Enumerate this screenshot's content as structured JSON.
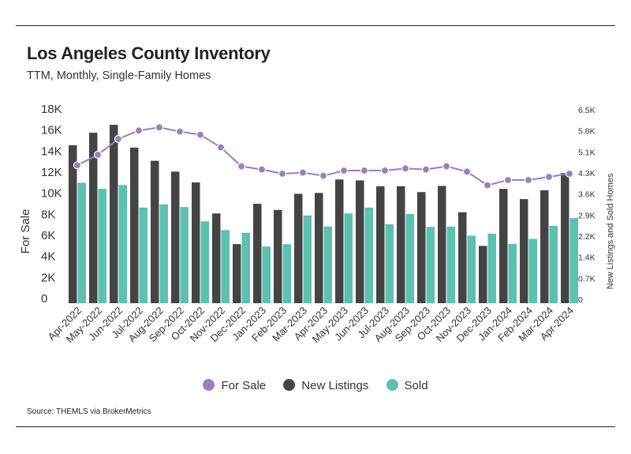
{
  "header": {
    "title": "Los Angeles County Inventory",
    "subtitle": "TTM, Monthly, Single-Family Homes"
  },
  "footer": {
    "source": "Source:  THEMLS via BrokerMetrics"
  },
  "colors": {
    "for_sale": "#9b7dc2",
    "new_listings": "#444444",
    "sold": "#5bc2ae",
    "text": "#333333",
    "rule": "#222222"
  },
  "chart_data": {
    "type": "bar",
    "categories": [
      "Apr-2022",
      "May-2022",
      "Jun-2022",
      "Jul-2022",
      "Aug-2022",
      "Sep-2022",
      "Oct-2022",
      "Nov-2022",
      "Dec-2022",
      "Jan-2023",
      "Feb-2023",
      "Mar-2023",
      "Apr-2023",
      "May-2023",
      "Jun-2023",
      "Jul-2023",
      "Aug-2023",
      "Sep-2023",
      "Oct-2023",
      "Nov-2023",
      "Dec-2023",
      "Jan-2024",
      "Feb-2024",
      "Mar-2024",
      "Apr-2024"
    ],
    "series": [
      {
        "name": "For Sale",
        "type": "line",
        "axis": "left",
        "values": [
          13100,
          14100,
          15600,
          16400,
          16700,
          16300,
          16000,
          14800,
          13000,
          12700,
          12300,
          12400,
          12100,
          12600,
          12600,
          12600,
          12800,
          12700,
          13000,
          12500,
          11200,
          11700,
          11700,
          12000,
          12300
        ]
      },
      {
        "name": "New Listings",
        "type": "bar",
        "axis": "right",
        "values": [
          5400,
          5830,
          6100,
          5320,
          4870,
          4500,
          4130,
          3070,
          2020,
          3400,
          3190,
          3740,
          3770,
          4230,
          4200,
          4000,
          4000,
          3800,
          4010,
          3110,
          1960,
          3910,
          3560,
          3860,
          4450
        ]
      },
      {
        "name": "Sold",
        "type": "bar",
        "axis": "right",
        "values": [
          4120,
          3910,
          4040,
          3270,
          3380,
          3290,
          2800,
          2500,
          2410,
          1940,
          2020,
          3000,
          2620,
          3070,
          3270,
          2700,
          3050,
          2610,
          2620,
          2310,
          2380,
          2030,
          2200,
          2650,
          2910
        ]
      }
    ],
    "ylabel": "For Sale",
    "y2label": "New Listings and Sold Homes",
    "ylim": [
      0,
      18000
    ],
    "y2lim": [
      0,
      6480
    ],
    "yticks": [
      "0",
      "2K",
      "4K",
      "6K",
      "8K",
      "10K",
      "12K",
      "14K",
      "16K",
      "18K"
    ],
    "y2ticks": [
      "0",
      "0.7K",
      "1.4K",
      "2.2K",
      "2.9K",
      "3.6K",
      "4.3K",
      "5.1K",
      "5.8K",
      "6.5K"
    ],
    "grid": false,
    "legend_position": "bottom-center"
  },
  "legend": {
    "items": [
      {
        "label": "For Sale",
        "color": "#9b7dc2"
      },
      {
        "label": "New Listings",
        "color": "#444444"
      },
      {
        "label": "Sold",
        "color": "#5bc2ae"
      }
    ]
  }
}
